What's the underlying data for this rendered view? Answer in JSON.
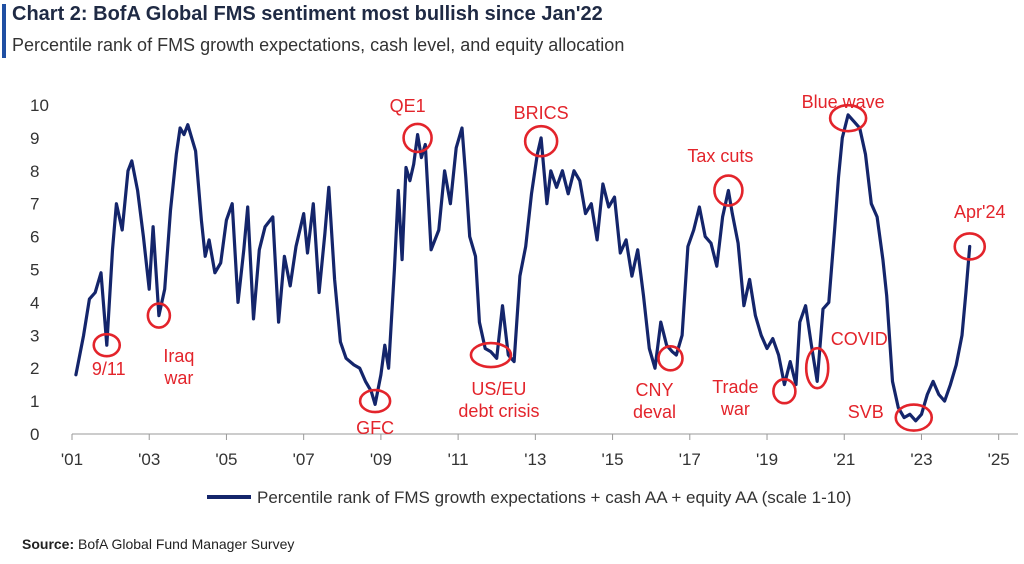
{
  "title": "Chart 2: BofA Global FMS sentiment most bullish since Jan'22",
  "subtitle": "Percentile rank of FMS growth expectations, cash level, and equity allocation",
  "source_label": "Source:",
  "source_text": "BofA Global Fund Manager Survey",
  "colors": {
    "line": "#14256b",
    "annotation": "#e3242b",
    "axis": "#333333",
    "accent": "#1f4fa3"
  },
  "chart_data": {
    "type": "line",
    "title": "Chart 2: BofA Global FMS sentiment most bullish since Jan'22",
    "ylim": [
      0,
      10
    ],
    "xlim": [
      2001.0,
      2025.5
    ],
    "yticks": [
      "0",
      "1",
      "2",
      "3",
      "4",
      "5",
      "6",
      "7",
      "8",
      "9",
      "10"
    ],
    "xticks": [
      {
        "x": 2001,
        "label": "'01"
      },
      {
        "x": 2003,
        "label": "'03"
      },
      {
        "x": 2005,
        "label": "'05"
      },
      {
        "x": 2007,
        "label": "'07"
      },
      {
        "x": 2009,
        "label": "'09"
      },
      {
        "x": 2011,
        "label": "'11"
      },
      {
        "x": 2013,
        "label": "'13"
      },
      {
        "x": 2015,
        "label": "'15"
      },
      {
        "x": 2017,
        "label": "'17"
      },
      {
        "x": 2019,
        "label": "'19"
      },
      {
        "x": 2021,
        "label": "'21"
      },
      {
        "x": 2023,
        "label": "'23"
      },
      {
        "x": 2025,
        "label": "'25"
      }
    ],
    "grid": false,
    "legend_position": "bottom",
    "series": [
      {
        "name": "Percentile rank of FMS growth expectations + cash AA + equity AA (scale 1-10)",
        "points": [
          [
            2001.1,
            1.8
          ],
          [
            2001.3,
            3.0
          ],
          [
            2001.45,
            4.1
          ],
          [
            2001.6,
            4.3
          ],
          [
            2001.75,
            4.9
          ],
          [
            2001.9,
            2.7
          ],
          [
            2002.05,
            5.6
          ],
          [
            2002.15,
            7.0
          ],
          [
            2002.3,
            6.2
          ],
          [
            2002.45,
            8.0
          ],
          [
            2002.55,
            8.3
          ],
          [
            2002.7,
            7.4
          ],
          [
            2002.85,
            6.0
          ],
          [
            2003.0,
            4.4
          ],
          [
            2003.1,
            6.3
          ],
          [
            2003.25,
            3.6
          ],
          [
            2003.4,
            4.4
          ],
          [
            2003.55,
            6.8
          ],
          [
            2003.7,
            8.5
          ],
          [
            2003.8,
            9.3
          ],
          [
            2003.9,
            9.1
          ],
          [
            2004.0,
            9.4
          ],
          [
            2004.1,
            9.0
          ],
          [
            2004.2,
            8.6
          ],
          [
            2004.35,
            6.5
          ],
          [
            2004.45,
            5.4
          ],
          [
            2004.55,
            5.9
          ],
          [
            2004.7,
            4.9
          ],
          [
            2004.85,
            5.2
          ],
          [
            2005.0,
            6.5
          ],
          [
            2005.15,
            7.0
          ],
          [
            2005.3,
            4.0
          ],
          [
            2005.45,
            5.6
          ],
          [
            2005.55,
            6.9
          ],
          [
            2005.7,
            3.5
          ],
          [
            2005.85,
            5.6
          ],
          [
            2006.0,
            6.3
          ],
          [
            2006.2,
            6.6
          ],
          [
            2006.35,
            3.4
          ],
          [
            2006.5,
            5.4
          ],
          [
            2006.65,
            4.5
          ],
          [
            2006.8,
            5.7
          ],
          [
            2007.0,
            6.7
          ],
          [
            2007.1,
            5.5
          ],
          [
            2007.25,
            7.0
          ],
          [
            2007.4,
            4.3
          ],
          [
            2007.55,
            6.1
          ],
          [
            2007.65,
            7.5
          ],
          [
            2007.8,
            4.7
          ],
          [
            2007.95,
            2.8
          ],
          [
            2008.1,
            2.3
          ],
          [
            2008.3,
            2.1
          ],
          [
            2008.45,
            2.0
          ],
          [
            2008.6,
            1.6
          ],
          [
            2008.75,
            1.3
          ],
          [
            2008.85,
            0.9
          ],
          [
            2009.0,
            1.8
          ],
          [
            2009.1,
            2.7
          ],
          [
            2009.2,
            2.0
          ],
          [
            2009.35,
            5.0
          ],
          [
            2009.45,
            7.4
          ],
          [
            2009.55,
            5.3
          ],
          [
            2009.65,
            8.1
          ],
          [
            2009.75,
            7.7
          ],
          [
            2009.85,
            8.2
          ],
          [
            2009.95,
            9.1
          ],
          [
            2010.05,
            8.4
          ],
          [
            2010.15,
            8.8
          ],
          [
            2010.3,
            5.6
          ],
          [
            2010.5,
            6.2
          ],
          [
            2010.65,
            8.0
          ],
          [
            2010.8,
            7.0
          ],
          [
            2010.95,
            8.7
          ],
          [
            2011.1,
            9.3
          ],
          [
            2011.2,
            7.8
          ],
          [
            2011.3,
            6.0
          ],
          [
            2011.45,
            5.4
          ],
          [
            2011.55,
            3.4
          ],
          [
            2011.7,
            2.6
          ],
          [
            2011.85,
            2.5
          ],
          [
            2012.0,
            2.3
          ],
          [
            2012.15,
            3.9
          ],
          [
            2012.3,
            2.4
          ],
          [
            2012.45,
            2.2
          ],
          [
            2012.6,
            4.8
          ],
          [
            2012.75,
            5.7
          ],
          [
            2012.9,
            7.3
          ],
          [
            2013.05,
            8.5
          ],
          [
            2013.15,
            9.0
          ],
          [
            2013.3,
            7.0
          ],
          [
            2013.4,
            8.0
          ],
          [
            2013.55,
            7.5
          ],
          [
            2013.7,
            8.0
          ],
          [
            2013.85,
            7.3
          ],
          [
            2014.0,
            8.0
          ],
          [
            2014.15,
            7.7
          ],
          [
            2014.3,
            6.7
          ],
          [
            2014.45,
            7.0
          ],
          [
            2014.6,
            5.9
          ],
          [
            2014.75,
            7.6
          ],
          [
            2014.9,
            6.9
          ],
          [
            2015.05,
            7.2
          ],
          [
            2015.2,
            5.5
          ],
          [
            2015.35,
            5.9
          ],
          [
            2015.5,
            4.8
          ],
          [
            2015.65,
            5.6
          ],
          [
            2015.8,
            4.2
          ],
          [
            2015.95,
            2.6
          ],
          [
            2016.1,
            2.0
          ],
          [
            2016.25,
            3.4
          ],
          [
            2016.4,
            2.7
          ],
          [
            2016.55,
            2.5
          ],
          [
            2016.65,
            2.4
          ],
          [
            2016.8,
            3.0
          ],
          [
            2016.95,
            5.7
          ],
          [
            2017.1,
            6.2
          ],
          [
            2017.25,
            6.9
          ],
          [
            2017.4,
            6.0
          ],
          [
            2017.55,
            5.8
          ],
          [
            2017.7,
            5.1
          ],
          [
            2017.85,
            6.6
          ],
          [
            2018.0,
            7.4
          ],
          [
            2018.1,
            6.7
          ],
          [
            2018.25,
            5.8
          ],
          [
            2018.4,
            3.9
          ],
          [
            2018.55,
            4.7
          ],
          [
            2018.7,
            3.6
          ],
          [
            2018.85,
            3.0
          ],
          [
            2019.0,
            2.6
          ],
          [
            2019.15,
            2.9
          ],
          [
            2019.3,
            2.4
          ],
          [
            2019.45,
            1.5
          ],
          [
            2019.6,
            2.2
          ],
          [
            2019.75,
            1.5
          ],
          [
            2019.85,
            3.4
          ],
          [
            2020.0,
            3.9
          ],
          [
            2020.15,
            2.7
          ],
          [
            2020.3,
            1.6
          ],
          [
            2020.45,
            3.8
          ],
          [
            2020.6,
            4.0
          ],
          [
            2020.75,
            6.2
          ],
          [
            2020.85,
            7.8
          ],
          [
            2020.95,
            9.0
          ],
          [
            2021.1,
            9.7
          ],
          [
            2021.25,
            9.5
          ],
          [
            2021.4,
            9.3
          ],
          [
            2021.55,
            8.5
          ],
          [
            2021.7,
            7.0
          ],
          [
            2021.85,
            6.6
          ],
          [
            2022.0,
            5.3
          ],
          [
            2022.1,
            4.2
          ],
          [
            2022.25,
            1.6
          ],
          [
            2022.4,
            0.8
          ],
          [
            2022.55,
            0.5
          ],
          [
            2022.7,
            0.6
          ],
          [
            2022.85,
            0.4
          ],
          [
            2023.0,
            0.6
          ],
          [
            2023.15,
            1.2
          ],
          [
            2023.3,
            1.6
          ],
          [
            2023.45,
            1.2
          ],
          [
            2023.6,
            1.0
          ],
          [
            2023.75,
            1.5
          ],
          [
            2023.9,
            2.1
          ],
          [
            2024.05,
            3.0
          ],
          [
            2024.15,
            4.3
          ],
          [
            2024.25,
            5.7
          ]
        ]
      }
    ],
    "annotations": [
      {
        "label": "9/11",
        "x": 2001.9,
        "y": 2.7
      },
      {
        "label": "Iraq war",
        "x": 2003.25,
        "y": 3.6
      },
      {
        "label": "GFC",
        "x": 2008.85,
        "y": 1.0
      },
      {
        "label": "QE1",
        "x": 2009.95,
        "y": 9.0
      },
      {
        "label": "US/EU debt crisis",
        "x": 2011.85,
        "y": 2.4
      },
      {
        "label": "BRICS",
        "x": 2013.15,
        "y": 8.9
      },
      {
        "label": "CNY deval",
        "x": 2016.5,
        "y": 2.3
      },
      {
        "label": "Tax cuts",
        "x": 2018.0,
        "y": 7.4
      },
      {
        "label": "Trade war",
        "x": 2019.45,
        "y": 1.3
      },
      {
        "label": "COVID",
        "x": 2020.3,
        "y": 2.0
      },
      {
        "label": "Blue wave",
        "x": 2021.1,
        "y": 9.6
      },
      {
        "label": "SVB",
        "x": 2022.8,
        "y": 0.5
      },
      {
        "label": "Apr'24",
        "x": 2024.25,
        "y": 5.7
      }
    ]
  }
}
